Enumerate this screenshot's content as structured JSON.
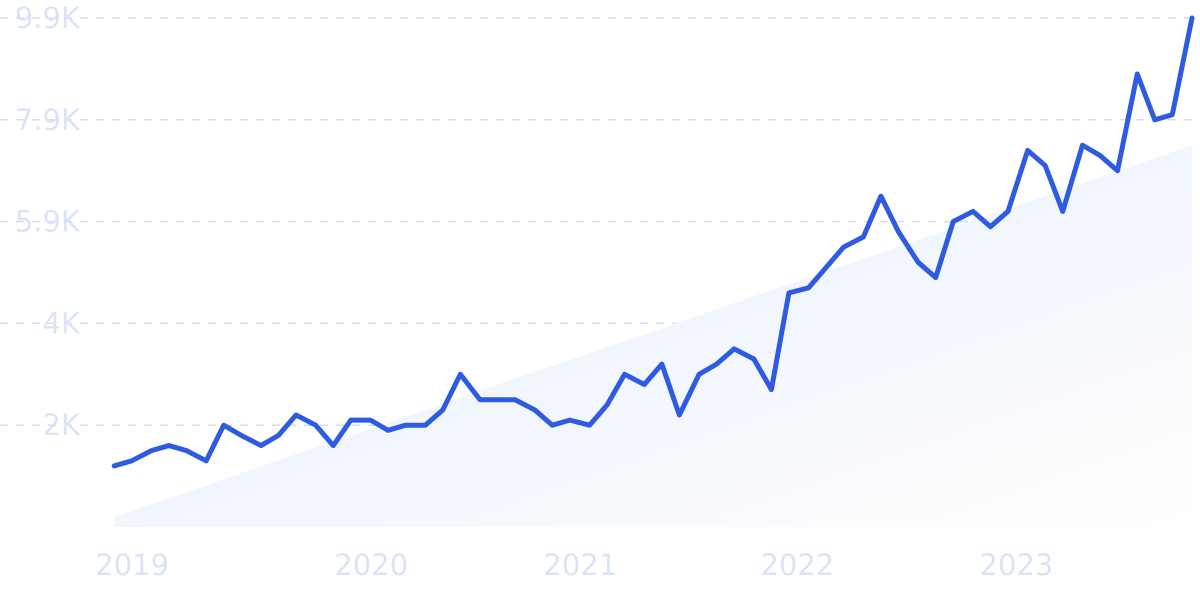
{
  "chart_data": {
    "type": "line",
    "title": "",
    "xlabel": "",
    "ylabel": "",
    "y_ticks": [
      {
        "value": 9900,
        "label": "9.9K"
      },
      {
        "value": 7900,
        "label": "7.9K"
      },
      {
        "value": 5900,
        "label": "5.9K"
      },
      {
        "value": 3900,
        "label": "4K"
      },
      {
        "value": 1900,
        "label": "2K"
      }
    ],
    "x_ticks": [
      {
        "value": 2019,
        "label": "2019"
      },
      {
        "value": 2020,
        "label": "2020"
      },
      {
        "value": 2021,
        "label": "2021"
      },
      {
        "value": 2022,
        "label": "2022"
      },
      {
        "value": 2023,
        "label": "2023"
      }
    ],
    "xlim": [
      2018.99,
      2023.92
    ],
    "ylim": [
      -100,
      9900
    ],
    "grid": true,
    "colors": {
      "line": "#2f5be3",
      "trend_fill_start": "#e3ecfb",
      "trend_fill_end": "#ffffff",
      "grid": "#d5dcee",
      "tick_label": "#dbe4f6"
    },
    "series": [
      {
        "x": [
          2019.0,
          2019.08,
          2019.17,
          2019.25,
          2019.33,
          2019.42,
          2019.5,
          2019.58,
          2019.67,
          2019.75,
          2019.83,
          2019.92,
          2020.0,
          2020.08,
          2020.17,
          2020.25,
          2020.33,
          2020.42,
          2020.5,
          2020.58,
          2020.67,
          2020.75,
          2020.83,
          2020.92,
          2021.0,
          2021.08,
          2021.17,
          2021.25,
          2021.33,
          2021.42,
          2021.5,
          2021.58,
          2021.67,
          2021.75,
          2021.83,
          2021.92,
          2022.0,
          2022.08,
          2022.17,
          2022.25,
          2022.33,
          2022.42,
          2022.5,
          2022.58,
          2022.67,
          2022.75,
          2022.83,
          2022.92,
          2023.0,
          2023.08,
          2023.17,
          2023.25,
          2023.33,
          2023.42,
          2023.5,
          2023.58,
          2023.67,
          2023.75,
          2023.83,
          2023.92
        ],
        "values": [
          1100,
          1200,
          1400,
          1500,
          1400,
          1200,
          1900,
          1700,
          1500,
          1700,
          2100,
          1900,
          1500,
          2000,
          2000,
          1800,
          1900,
          1900,
          2200,
          2900,
          2400,
          2400,
          2400,
          2200,
          1900,
          2000,
          1900,
          2300,
          2900,
          2700,
          3100,
          2100,
          2900,
          3100,
          3400,
          3200,
          2600,
          4500,
          4600,
          5000,
          5400,
          5600,
          6400,
          5700,
          5100,
          4800,
          5900,
          6100,
          5800,
          6100,
          7300,
          7000,
          6100,
          7400,
          7200,
          6900,
          8800,
          7900,
          8000,
          9900
        ]
      }
    ],
    "trend": {
      "x": [
        2019.0,
        2023.92
      ],
      "values": [
        100,
        7400
      ]
    }
  }
}
